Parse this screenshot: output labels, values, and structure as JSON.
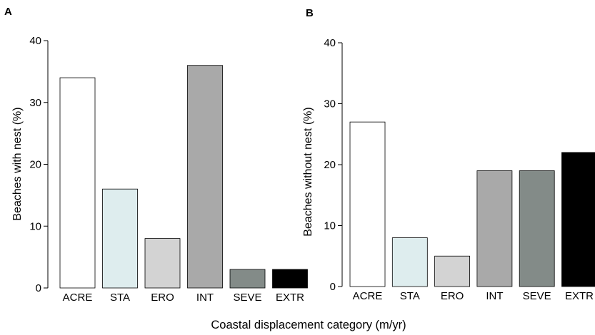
{
  "figure": {
    "shared_xlabel": "Coastal displacement category (m/yr)"
  },
  "chart_data": [
    {
      "type": "bar",
      "panel_label": "A",
      "categories": [
        "ACRE",
        "STA",
        "ERO",
        "INT",
        "SEVE",
        "EXTR"
      ],
      "values": [
        34,
        16,
        8,
        36,
        3,
        3
      ],
      "colors": [
        "#ffffff",
        "#deedee",
        "#d3d3d3",
        "#a9a9a9",
        "#838b88",
        "#000000"
      ],
      "xlabel": "Coastal displacement category (m/yr)",
      "ylabel": "Beaches with nest (%)",
      "ylim": [
        0,
        40
      ],
      "yticks": [
        0,
        10,
        20,
        30,
        40
      ],
      "grid": false
    },
    {
      "type": "bar",
      "panel_label": "B",
      "categories": [
        "ACRE",
        "STA",
        "ERO",
        "INT",
        "SEVE",
        "EXTR"
      ],
      "values": [
        27,
        8,
        5,
        19,
        19,
        22
      ],
      "colors": [
        "#ffffff",
        "#deedee",
        "#d3d3d3",
        "#a9a9a9",
        "#838b88",
        "#000000"
      ],
      "xlabel": "Coastal displacement category (m/yr)",
      "ylabel": "Beaches without nest (%)",
      "ylim": [
        0,
        40
      ],
      "yticks": [
        0,
        10,
        20,
        30,
        40
      ],
      "grid": false
    }
  ]
}
